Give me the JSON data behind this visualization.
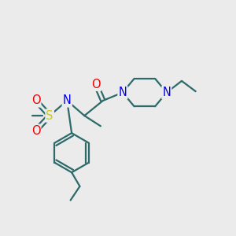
{
  "background_color": "#ebebeb",
  "atom_colors": {
    "C": "#2d6b6b",
    "N": "#0000ee",
    "O": "#ee0000",
    "S": "#cccc00"
  },
  "bond_color": "#2d6b6b",
  "bond_width": 1.6
}
